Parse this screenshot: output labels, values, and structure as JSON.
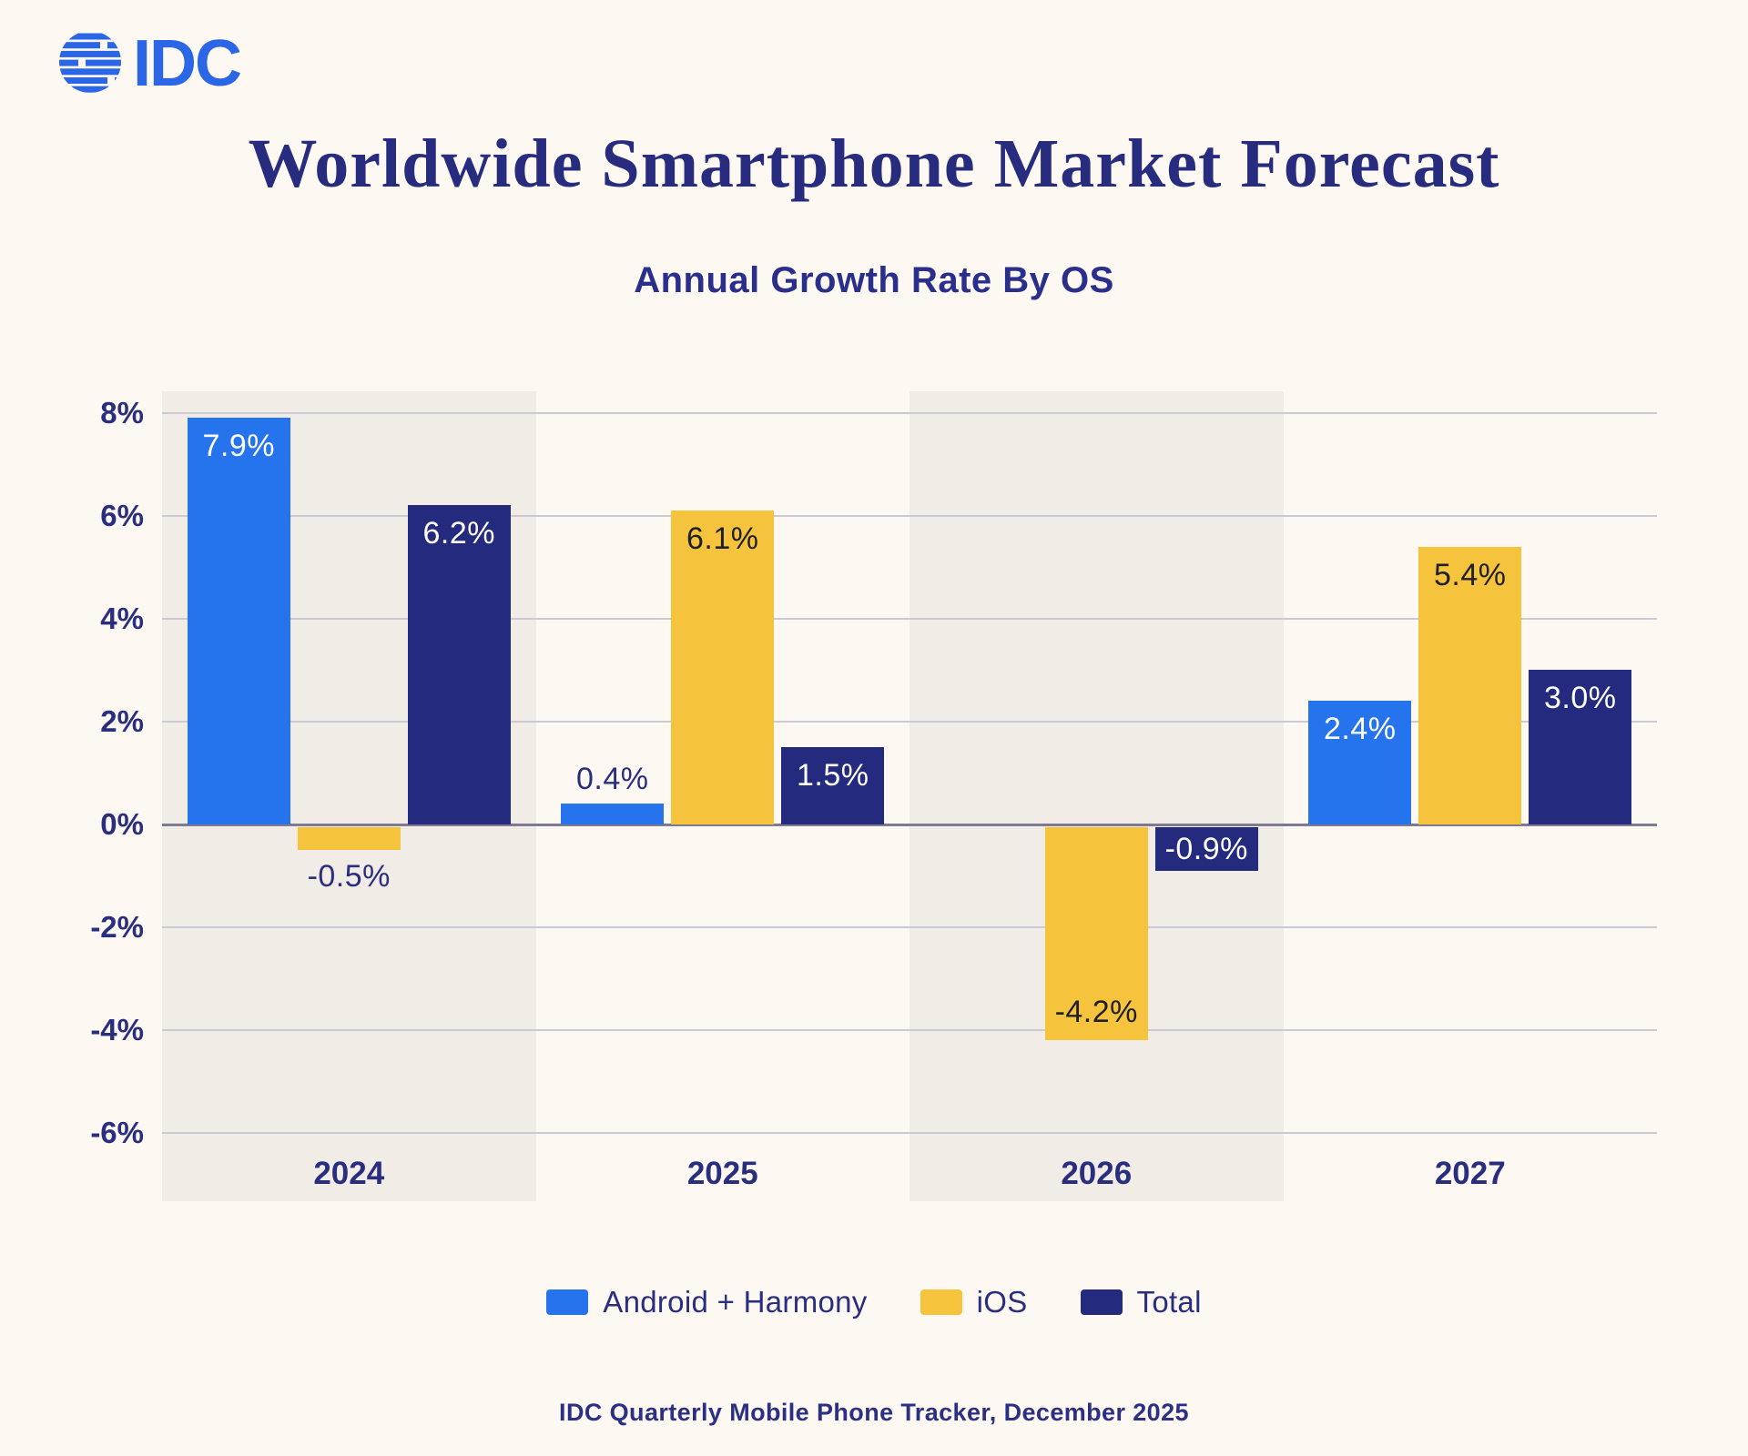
{
  "logo": {
    "text": "IDC",
    "color": "#2A66E6"
  },
  "header": {
    "title": "Worldwide Smartphone Market Forecast",
    "subtitle": "Annual Growth Rate By OS"
  },
  "chart_data": {
    "type": "bar",
    "title": "Worldwide Smartphone Market Forecast",
    "subtitle": "Annual Growth Rate By OS",
    "categories": [
      "2024",
      "2025",
      "2026",
      "2027"
    ],
    "series": [
      {
        "name": "Android + Harmony",
        "color": "#2574EE",
        "values": [
          7.9,
          0.4,
          null,
          2.4
        ],
        "labels": [
          "7.9%",
          "0.4%",
          null,
          "2.4%"
        ],
        "label_styles": [
          {
            "placement": "inside-top",
            "color": "#FFFFFF"
          },
          {
            "placement": "above",
            "color": "#2A2E7F"
          },
          null,
          {
            "placement": "inside-top",
            "color": "#FFFFFF"
          }
        ]
      },
      {
        "name": "iOS",
        "color": "#F6C43C",
        "values": [
          -0.5,
          6.1,
          -4.2,
          5.4
        ],
        "labels": [
          "-0.5%",
          "6.1%",
          "-4.2%",
          "5.4%"
        ],
        "label_styles": [
          {
            "placement": "below",
            "color": "#2A2E7F"
          },
          {
            "placement": "inside-top",
            "color": "#20202B"
          },
          {
            "placement": "inside-bottom",
            "color": "#20202B"
          },
          {
            "placement": "inside-top",
            "color": "#20202B"
          }
        ]
      },
      {
        "name": "Total",
        "color": "#242A7D",
        "values": [
          6.2,
          1.5,
          -0.9,
          3.0
        ],
        "labels": [
          "6.2%",
          "1.5%",
          "-0.9%",
          "3.0%"
        ],
        "label_styles": [
          {
            "placement": "inside-top",
            "color": "#FFFFFF"
          },
          {
            "placement": "inside-top",
            "color": "#FFFFFF"
          },
          {
            "placement": "inside-middle",
            "color": "#FFFFFF"
          },
          {
            "placement": "inside-top",
            "color": "#FFFFFF"
          }
        ]
      }
    ],
    "xlabel": "",
    "ylabel": "",
    "yticks": [
      8,
      6,
      4,
      2,
      0,
      -2,
      -4,
      -6
    ],
    "ytick_labels": [
      "8%",
      "6%",
      "4%",
      "2%",
      "0%",
      "-2%",
      "-4%",
      "-6%"
    ],
    "ylim": [
      -7.33,
      8.42
    ],
    "grid": true,
    "banded_columns": [
      0,
      2
    ],
    "legend_position": "bottom"
  },
  "legend": {
    "items": [
      {
        "label": "Android + Harmony",
        "color": "#2574EE"
      },
      {
        "label": "iOS",
        "color": "#F6C43C"
      },
      {
        "label": "Total",
        "color": "#242A7D"
      }
    ]
  },
  "footer": {
    "source": "IDC Quarterly Mobile Phone Tracker, December 2025"
  },
  "colors": {
    "background": "#FDF8F1",
    "band": "#F1ECE5",
    "gridline": "#CDC9D4",
    "zero_line": "#7D7A92",
    "heading": "#282C7E",
    "logo_blue": "#2A66E6"
  }
}
